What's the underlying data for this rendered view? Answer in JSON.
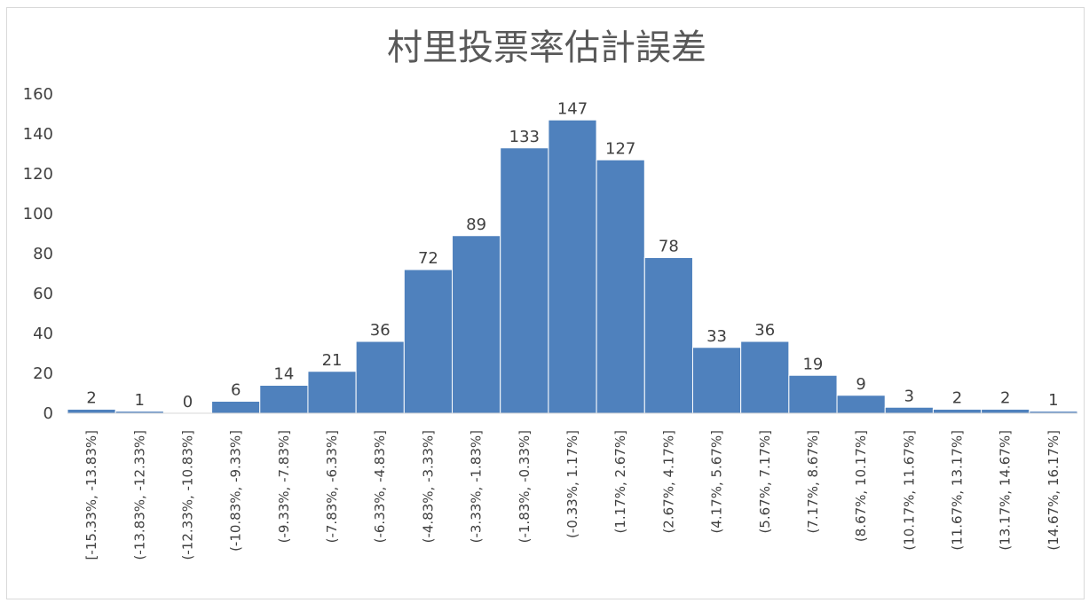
{
  "chart_data": {
    "type": "bar",
    "title": "村里投票率估計誤差",
    "xlabel": "",
    "ylabel": "",
    "ylim": [
      0,
      160
    ],
    "y_ticks": [
      0,
      20,
      40,
      60,
      80,
      100,
      120,
      140,
      160
    ],
    "grid": false,
    "legend": "none",
    "bar_color": "#4f81bd",
    "categories": [
      "[-15.33%, -13.83%]",
      "(-13.83%, -12.33%]",
      "(-12.33%, -10.83%]",
      "(-10.83%, -9.33%]",
      "(-9.33%, -7.83%]",
      "(-7.83%, -6.33%]",
      "(-6.33%, -4.83%]",
      "(-4.83%, -3.33%]",
      "(-3.33%, -1.83%]",
      "(-1.83%, -0.33%]",
      "(-0.33%, 1.17%]",
      "(1.17%, 2.67%]",
      "(2.67%, 4.17%]",
      "(4.17%, 5.67%]",
      "(5.67%, 7.17%]",
      "(7.17%, 8.67%]",
      "(8.67%, 10.17%]",
      "(10.17%, 11.67%]",
      "(11.67%, 13.17%]",
      "(13.17%, 14.67%]",
      "(14.67%, 16.17%]"
    ],
    "values": [
      2,
      1,
      0,
      6,
      14,
      21,
      36,
      72,
      89,
      133,
      147,
      127,
      78,
      33,
      36,
      19,
      9,
      3,
      2,
      2,
      1
    ]
  }
}
